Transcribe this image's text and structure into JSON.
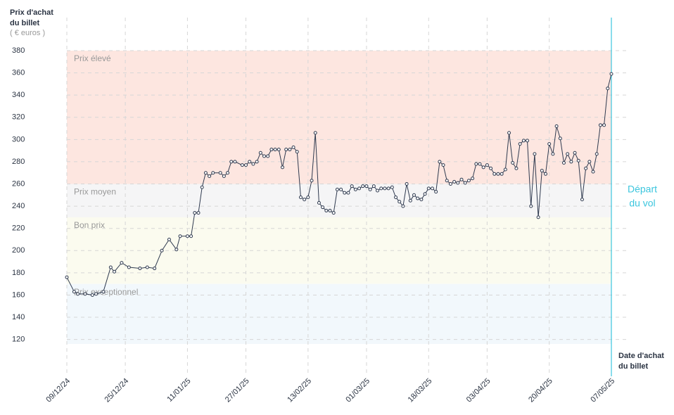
{
  "chart_data": {
    "type": "line",
    "y_title": [
      "Prix d'achat",
      "du billet"
    ],
    "y_unit": "( € euros )",
    "x_title": [
      "Date d'achat",
      "du billet"
    ],
    "ylim": [
      90,
      380
    ],
    "yticks": [
      120,
      140,
      160,
      180,
      200,
      220,
      240,
      260,
      280,
      300,
      320,
      340,
      360,
      380
    ],
    "xlim": [
      "09/12/24",
      "07/05/25"
    ],
    "xticks": [
      "09/12/24",
      "25/12/24",
      "11/01/25",
      "27/01/25",
      "13/02/25",
      "01/03/25",
      "18/03/25",
      "03/04/25",
      "20/04/25",
      "07/05/25"
    ],
    "grid": true,
    "bands": [
      {
        "label": "Prix élevé",
        "from": 260,
        "to": 380,
        "color": "#fde6e0"
      },
      {
        "label": "Prix moyen",
        "from": 230,
        "to": 260,
        "color": "#f5f5f6"
      },
      {
        "label": "Bon prix",
        "from": 170,
        "to": 230,
        "color": "#fbfbef"
      },
      {
        "label": "Prix exceptionnel",
        "from": 116,
        "to": 170,
        "color": "#f2f8fc"
      }
    ],
    "departure": {
      "date": "07/05/25",
      "label": [
        "Départ",
        "du vol"
      ],
      "color": "#3cc6de"
    },
    "series": [
      {
        "color": "#2f3a4f",
        "x": [
          "09/12/24",
          "11/12/24",
          "12/12/24",
          "14/12/24",
          "16/12/24",
          "17/12/24",
          "19/12/24",
          "21/12/24",
          "22/12/24",
          "24/12/24",
          "26/12/24",
          "29/12/24",
          "31/12/24",
          "02/01/25",
          "04/01/25",
          "06/01/25",
          "08/01/25",
          "09/01/25",
          "11/01/25",
          "12/01/25",
          "13/01/25",
          "14/01/25",
          "15/01/25",
          "16/01/25",
          "17/01/25",
          "18/01/25",
          "20/01/25",
          "21/01/25",
          "22/01/25",
          "23/01/25",
          "24/01/25",
          "26/01/25",
          "27/01/25",
          "28/01/25",
          "29/01/25",
          "30/01/25",
          "31/01/25",
          "01/02/25",
          "02/02/25",
          "03/02/25",
          "04/02/25",
          "05/02/25",
          "06/02/25",
          "07/02/25",
          "08/02/25",
          "09/02/25",
          "10/02/25",
          "11/02/25",
          "12/02/25",
          "13/02/25",
          "14/02/25",
          "15/02/25",
          "16/02/25",
          "17/02/25",
          "18/02/25",
          "19/02/25",
          "20/02/25",
          "21/02/25",
          "22/02/25",
          "23/02/25",
          "24/02/25",
          "25/02/25",
          "26/02/25",
          "27/02/25",
          "28/02/25",
          "01/03/25",
          "02/03/25",
          "03/03/25",
          "04/03/25",
          "05/03/25",
          "06/03/25",
          "07/03/25",
          "08/03/25",
          "09/03/25",
          "10/03/25",
          "11/03/25",
          "12/03/25",
          "13/03/25",
          "14/03/25",
          "15/03/25",
          "16/03/25",
          "17/03/25",
          "18/03/25",
          "19/03/25",
          "20/03/25",
          "21/03/25",
          "22/03/25",
          "23/03/25",
          "24/03/25",
          "25/03/25",
          "26/03/25",
          "27/03/25",
          "28/03/25",
          "29/03/25",
          "30/03/25",
          "31/03/25",
          "01/04/25",
          "02/04/25",
          "03/04/25",
          "04/04/25",
          "05/04/25",
          "06/04/25",
          "07/04/25",
          "08/04/25",
          "09/04/25",
          "10/04/25",
          "11/04/25",
          "12/04/25",
          "13/04/25",
          "14/04/25",
          "15/04/25",
          "16/04/25",
          "17/04/25",
          "18/04/25",
          "19/04/25",
          "20/04/25",
          "21/04/25",
          "22/04/25",
          "23/04/25",
          "24/04/25",
          "25/04/25",
          "26/04/25",
          "27/04/25",
          "28/04/25",
          "29/04/25",
          "30/04/25",
          "01/05/25",
          "02/05/25",
          "03/05/25",
          "04/05/25",
          "05/05/25",
          "06/05/25",
          "07/05/25"
        ],
        "values": [
          176,
          163,
          161,
          161,
          160,
          161,
          163,
          185,
          181,
          189,
          185,
          184,
          185,
          184,
          200,
          210,
          201,
          213,
          213,
          213,
          234,
          234,
          257,
          270,
          267,
          270,
          270,
          267,
          270,
          280,
          280,
          277,
          277,
          280,
          278,
          280,
          288,
          285,
          285,
          291,
          291,
          291,
          275,
          291,
          291,
          293,
          289,
          248,
          246,
          248,
          263,
          306,
          243,
          239,
          236,
          236,
          234,
          255,
          255,
          252,
          252,
          258,
          255,
          256,
          258,
          258,
          255,
          258,
          254,
          256,
          256,
          256,
          257,
          248,
          244,
          240,
          260,
          245,
          250,
          247,
          246,
          251,
          256,
          256,
          253,
          280,
          277,
          263,
          260,
          262,
          261,
          264,
          261,
          263,
          265,
          278,
          278,
          275,
          277,
          274,
          269,
          269,
          269,
          273,
          306,
          279,
          274,
          296,
          299,
          299,
          240,
          287,
          230,
          272,
          269,
          296,
          287,
          312,
          301,
          279,
          287,
          280,
          288,
          281,
          246,
          274,
          280,
          271,
          287,
          313,
          313,
          346,
          359
        ]
      }
    ]
  }
}
